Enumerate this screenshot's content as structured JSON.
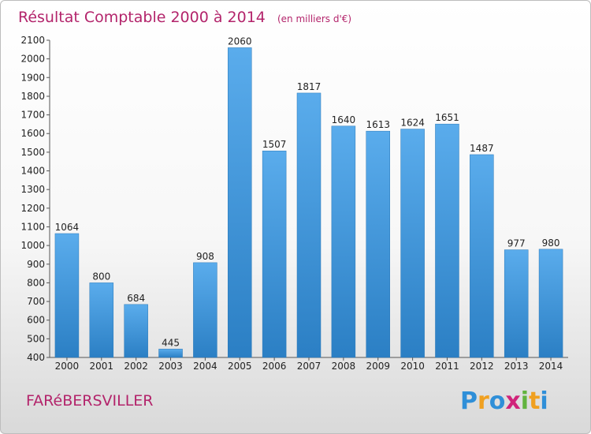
{
  "chart_data": {
    "type": "bar",
    "title": "Résultat Comptable 2000 à 2014",
    "subtitle": "(en milliers d'€)",
    "categories": [
      "2000",
      "2001",
      "2002",
      "2003",
      "2004",
      "2005",
      "2006",
      "2007",
      "2008",
      "2009",
      "2010",
      "2011",
      "2012",
      "2013",
      "2014"
    ],
    "values": [
      1064,
      800,
      684,
      445,
      908,
      2060,
      1507,
      1817,
      1640,
      1613,
      1624,
      1651,
      1487,
      977,
      980
    ],
    "yticks": [
      "400",
      "500",
      "600",
      "700",
      "800",
      "900",
      "1000",
      "1100",
      "1200",
      "1300",
      "1400",
      "1500",
      "1600",
      "1700",
      "1800",
      "1900",
      "2000",
      "2100"
    ],
    "ylim": [
      400,
      2100
    ],
    "grid": false,
    "bar_color": "#3d92d6"
  },
  "commune": "FARéBERSVILLER",
  "logo": {
    "letters": [
      "P",
      "r",
      "o",
      "x",
      "i",
      "t",
      "i"
    ],
    "colors": [
      "#2f8fd8",
      "#f0a020",
      "#2f8fd8",
      "#d0247a",
      "#62b33e",
      "#f0a020",
      "#2f8fd8"
    ]
  }
}
